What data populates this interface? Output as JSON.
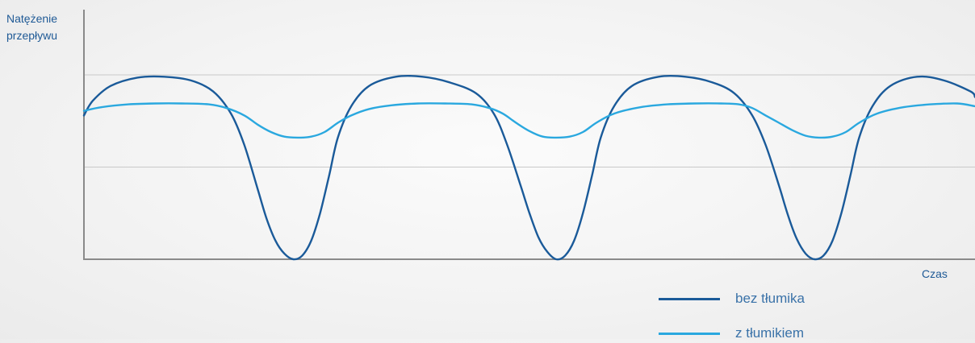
{
  "chart_data": {
    "type": "line",
    "title": "",
    "ylabel": [
      "Natężenie",
      "przepływu"
    ],
    "xlabel": "Czas",
    "xlim": [
      0,
      1
    ],
    "ylim": [
      0,
      1
    ],
    "grid": true,
    "gridlines_y": [
      0.5,
      1.0
    ],
    "legend_position": "bottom-right",
    "series": [
      {
        "name": "bez tłumika",
        "color": "#1a5a99",
        "x": [
          0.0,
          0.01,
          0.03,
          0.06,
          0.09,
          0.12,
          0.145,
          0.165,
          0.18,
          0.195,
          0.205,
          0.215,
          0.225,
          0.235,
          0.245,
          0.255,
          0.265,
          0.275,
          0.285,
          0.3,
          0.32,
          0.35,
          0.38,
          0.41,
          0.44,
          0.46,
          0.475,
          0.49,
          0.5,
          0.51,
          0.52,
          0.53,
          0.54,
          0.55,
          0.56,
          0.57,
          0.58,
          0.595,
          0.615,
          0.645,
          0.675,
          0.705,
          0.73,
          0.75,
          0.765,
          0.78,
          0.79,
          0.8,
          0.81,
          0.82,
          0.83,
          0.84,
          0.85,
          0.86,
          0.87,
          0.885,
          0.905,
          0.935,
          0.965,
          0.995,
          1.0
        ],
        "y": [
          0.78,
          0.86,
          0.94,
          0.985,
          0.99,
          0.97,
          0.91,
          0.79,
          0.62,
          0.38,
          0.22,
          0.1,
          0.03,
          0.0,
          0.02,
          0.1,
          0.25,
          0.45,
          0.66,
          0.83,
          0.94,
          0.99,
          0.99,
          0.96,
          0.9,
          0.79,
          0.62,
          0.4,
          0.25,
          0.12,
          0.04,
          0.0,
          0.02,
          0.1,
          0.25,
          0.45,
          0.66,
          0.83,
          0.94,
          0.99,
          0.99,
          0.96,
          0.9,
          0.78,
          0.62,
          0.4,
          0.24,
          0.11,
          0.03,
          0.0,
          0.02,
          0.1,
          0.25,
          0.45,
          0.66,
          0.83,
          0.94,
          0.99,
          0.97,
          0.91,
          0.88
        ]
      },
      {
        "name": "z tłumikiem",
        "color": "#2aa8df",
        "x": [
          0.0,
          0.02,
          0.05,
          0.08,
          0.11,
          0.14,
          0.16,
          0.18,
          0.195,
          0.21,
          0.225,
          0.24,
          0.255,
          0.27,
          0.285,
          0.3,
          0.32,
          0.345,
          0.375,
          0.405,
          0.435,
          0.455,
          0.47,
          0.485,
          0.5,
          0.515,
          0.53,
          0.545,
          0.56,
          0.575,
          0.595,
          0.625,
          0.655,
          0.685,
          0.715,
          0.735,
          0.75,
          0.765,
          0.78,
          0.795,
          0.81,
          0.825,
          0.84,
          0.855,
          0.87,
          0.89,
          0.92,
          0.95,
          0.98,
          1.0
        ],
        "y": [
          0.805,
          0.825,
          0.84,
          0.845,
          0.845,
          0.84,
          0.82,
          0.78,
          0.73,
          0.69,
          0.665,
          0.66,
          0.665,
          0.69,
          0.74,
          0.78,
          0.815,
          0.835,
          0.845,
          0.845,
          0.84,
          0.82,
          0.79,
          0.74,
          0.695,
          0.665,
          0.66,
          0.665,
          0.69,
          0.74,
          0.79,
          0.825,
          0.84,
          0.845,
          0.845,
          0.84,
          0.82,
          0.78,
          0.74,
          0.7,
          0.67,
          0.66,
          0.665,
          0.69,
          0.74,
          0.79,
          0.825,
          0.84,
          0.845,
          0.83
        ]
      }
    ]
  },
  "legend": [
    {
      "label": "bez tłumika",
      "color": "#1a5a99"
    },
    {
      "label": "z tłumikiem",
      "color": "#2aa8df"
    }
  ]
}
